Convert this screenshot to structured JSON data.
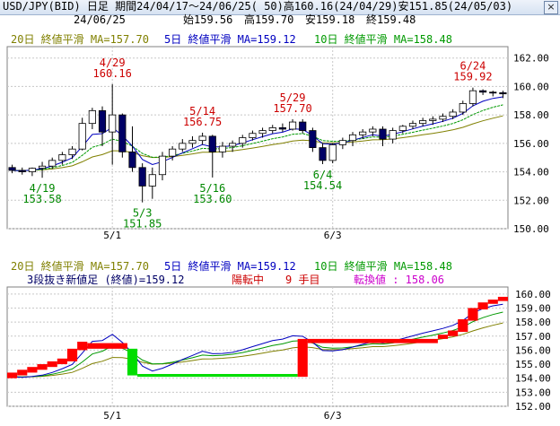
{
  "window": {
    "title": "USD/JPY(BID) 日足 期間24/04/17～24/06/25( 50)高160.16(24/04/29)安151.85(24/05/03)",
    "close_glyph": "×"
  },
  "info_line": {
    "date": "24/06/25",
    "open": "始159.56",
    "high": "高159.70",
    "low": "安159.18",
    "close": "終159.48"
  },
  "colors": {
    "ma20": "#808000",
    "ma5": "#0000c0",
    "ma10": "#009900",
    "bull_candle": "#ffffff",
    "bear_candle": "#000066",
    "annot_high": "#cc0000",
    "annot_low": "#008800",
    "brick_up": "#ff0000",
    "brick_down": "#00dd00",
    "grid": "#c8c8c8",
    "frame": "#808080"
  },
  "chart_data": [
    {
      "type": "candlestick",
      "legend": [
        {
          "label": "20日 終値平滑 MA=157.70",
          "color": "#808000"
        },
        {
          "label": "5日 終値平滑 MA=159.12",
          "color": "#0000c0"
        },
        {
          "label": "10日 終値平滑 MA=158.48",
          "color": "#009900"
        }
      ],
      "ylim": [
        150,
        162.8
      ],
      "yticks": [
        "150.00",
        "152.00",
        "154.00",
        "156.00",
        "158.00",
        "160.00",
        "162.00"
      ],
      "xtick_labels": [
        {
          "label": "5/1",
          "index": 10
        },
        {
          "label": "6/3",
          "index": 32
        }
      ],
      "candles": [
        [
          154.3,
          154.5,
          153.9,
          154.1
        ],
        [
          154.1,
          154.3,
          153.8,
          154.0
        ],
        [
          154.0,
          154.3,
          153.7,
          154.25
        ],
        [
          154.25,
          154.7,
          153.58,
          154.4
        ],
        [
          154.4,
          155.0,
          154.2,
          154.8
        ],
        [
          154.8,
          155.4,
          154.5,
          155.2
        ],
        [
          155.2,
          155.8,
          154.9,
          155.6
        ],
        [
          155.6,
          157.8,
          155.5,
          157.4
        ],
        [
          157.4,
          158.5,
          157.0,
          158.3
        ],
        [
          158.3,
          158.6,
          155.8,
          156.8
        ],
        [
          156.8,
          160.16,
          154.5,
          158.0
        ],
        [
          158.0,
          158.1,
          155.0,
          155.4
        ],
        [
          155.4,
          157.2,
          154.0,
          154.3
        ],
        [
          154.3,
          154.6,
          151.85,
          153.0
        ],
        [
          153.0,
          154.3,
          152.1,
          153.8
        ],
        [
          153.8,
          155.4,
          153.4,
          155.1
        ],
        [
          155.1,
          155.8,
          154.8,
          155.6
        ],
        [
          155.6,
          156.3,
          155.4,
          156.0
        ],
        [
          156.0,
          156.5,
          155.7,
          156.2
        ],
        [
          156.2,
          156.75,
          155.9,
          156.5
        ],
        [
          156.5,
          156.6,
          153.6,
          155.4
        ],
        [
          155.4,
          156.1,
          155.0,
          155.8
        ],
        [
          155.8,
          156.2,
          155.4,
          156.0
        ],
        [
          156.0,
          156.6,
          155.7,
          156.4
        ],
        [
          156.4,
          156.9,
          156.2,
          156.7
        ],
        [
          156.7,
          157.1,
          156.4,
          156.9
        ],
        [
          156.9,
          157.3,
          156.7,
          157.1
        ],
        [
          157.1,
          157.4,
          156.8,
          157.0
        ],
        [
          157.0,
          157.7,
          156.9,
          157.5
        ],
        [
          157.5,
          157.7,
          156.7,
          156.9
        ],
        [
          156.9,
          157.1,
          155.4,
          155.7
        ],
        [
          155.7,
          156.0,
          154.54,
          154.8
        ],
        [
          154.8,
          156.0,
          154.6,
          155.9
        ],
        [
          155.9,
          156.4,
          155.6,
          156.2
        ],
        [
          156.2,
          156.8,
          155.8,
          156.6
        ],
        [
          156.6,
          157.0,
          156.3,
          156.8
        ],
        [
          156.8,
          157.2,
          156.5,
          157.0
        ],
        [
          157.0,
          157.2,
          155.8,
          156.3
        ],
        [
          156.3,
          157.1,
          156.0,
          156.9
        ],
        [
          156.9,
          157.3,
          156.7,
          157.2
        ],
        [
          157.2,
          157.6,
          157.0,
          157.4
        ],
        [
          157.4,
          157.8,
          157.2,
          157.6
        ],
        [
          157.6,
          157.9,
          157.3,
          157.7
        ],
        [
          157.7,
          158.1,
          157.5,
          157.9
        ],
        [
          157.9,
          158.4,
          157.7,
          158.2
        ],
        [
          158.2,
          159.0,
          158.0,
          158.8
        ],
        [
          158.8,
          159.92,
          158.6,
          159.7
        ],
        [
          159.7,
          159.8,
          159.4,
          159.6
        ],
        [
          159.6,
          159.7,
          159.3,
          159.56
        ],
        [
          159.56,
          159.7,
          159.18,
          159.48
        ]
      ],
      "annotations": [
        {
          "date": "4/29",
          "value": "160.16",
          "index": 10,
          "kind": "high"
        },
        {
          "date": "5/14",
          "value": "156.75",
          "index": 19,
          "kind": "high"
        },
        {
          "date": "5/29",
          "value": "157.70",
          "index": 28,
          "kind": "high"
        },
        {
          "date": "6/24",
          "value": "159.92",
          "index": 46,
          "kind": "high"
        },
        {
          "date": "4/19",
          "value": "153.58",
          "index": 3,
          "kind": "low"
        },
        {
          "date": "5/3",
          "value": "151.85",
          "index": 13,
          "kind": "low"
        },
        {
          "date": "5/16",
          "value": "153.60",
          "index": 20,
          "kind": "low"
        },
        {
          "date": "6/4",
          "value": "154.54",
          "index": 31,
          "kind": "low"
        }
      ]
    },
    {
      "type": "three-line-break",
      "legend": [
        {
          "label": "20日 終値平滑 MA=157.70",
          "color": "#808000"
        },
        {
          "label": "5日 終値平滑 MA=159.12",
          "color": "#0000c0"
        },
        {
          "label": "10日 終値平滑 MA=158.48",
          "color": "#009900"
        }
      ],
      "status": {
        "prefix": "3段抜き新値足 (終値)=159.12",
        "trend": "陽転中",
        "count": "9 手目",
        "reversal": "転換値 : 158.06"
      },
      "ylim": [
        152,
        160.5
      ],
      "yticks": [
        "152.00",
        "153.00",
        "154.00",
        "155.00",
        "156.00",
        "157.00",
        "158.00",
        "159.00",
        "160.00"
      ],
      "xtick_labels": [
        {
          "label": "5/1",
          "index": 10
        },
        {
          "label": "6/3",
          "index": 32
        }
      ],
      "bricks": [
        {
          "from": 0,
          "to": 1,
          "low": 154.0,
          "high": 154.4,
          "dir": "up"
        },
        {
          "from": 1,
          "to": 2,
          "low": 154.2,
          "high": 154.6,
          "dir": "up"
        },
        {
          "from": 2,
          "to": 3,
          "low": 154.4,
          "high": 154.8,
          "dir": "up"
        },
        {
          "from": 3,
          "to": 4,
          "low": 154.6,
          "high": 155.0,
          "dir": "up"
        },
        {
          "from": 4,
          "to": 5,
          "low": 154.8,
          "high": 155.2,
          "dir": "up"
        },
        {
          "from": 5,
          "to": 6,
          "low": 155.0,
          "high": 155.4,
          "dir": "up"
        },
        {
          "from": 6,
          "to": 7,
          "low": 155.2,
          "high": 156.1,
          "dir": "up"
        },
        {
          "from": 7,
          "to": 8,
          "low": 156.0,
          "high": 156.6,
          "dir": "up"
        },
        {
          "from": 8,
          "to": 12,
          "low": 156.1,
          "high": 156.5,
          "dir": "up"
        },
        {
          "from": 12,
          "to": 13,
          "low": 154.2,
          "high": 156.1,
          "dir": "down"
        },
        {
          "from": 13,
          "to": 29,
          "low": 154.1,
          "high": 154.3,
          "dir": "down"
        },
        {
          "from": 29,
          "to": 30,
          "low": 154.1,
          "high": 156.8,
          "dir": "up"
        },
        {
          "from": 30,
          "to": 43,
          "low": 156.5,
          "high": 156.8,
          "dir": "up"
        },
        {
          "from": 43,
          "to": 44,
          "low": 156.8,
          "high": 157.1,
          "dir": "up"
        },
        {
          "from": 44,
          "to": 45,
          "low": 157.0,
          "high": 157.4,
          "dir": "up"
        },
        {
          "from": 45,
          "to": 46,
          "low": 157.3,
          "high": 158.2,
          "dir": "up"
        },
        {
          "from": 46,
          "to": 47,
          "low": 158.1,
          "high": 159.0,
          "dir": "up"
        },
        {
          "from": 47,
          "to": 48,
          "low": 158.9,
          "high": 159.4,
          "dir": "up"
        },
        {
          "from": 48,
          "to": 49,
          "low": 159.3,
          "high": 159.6,
          "dir": "up"
        },
        {
          "from": 49,
          "to": 50,
          "low": 159.5,
          "high": 159.8,
          "dir": "up"
        }
      ]
    }
  ]
}
